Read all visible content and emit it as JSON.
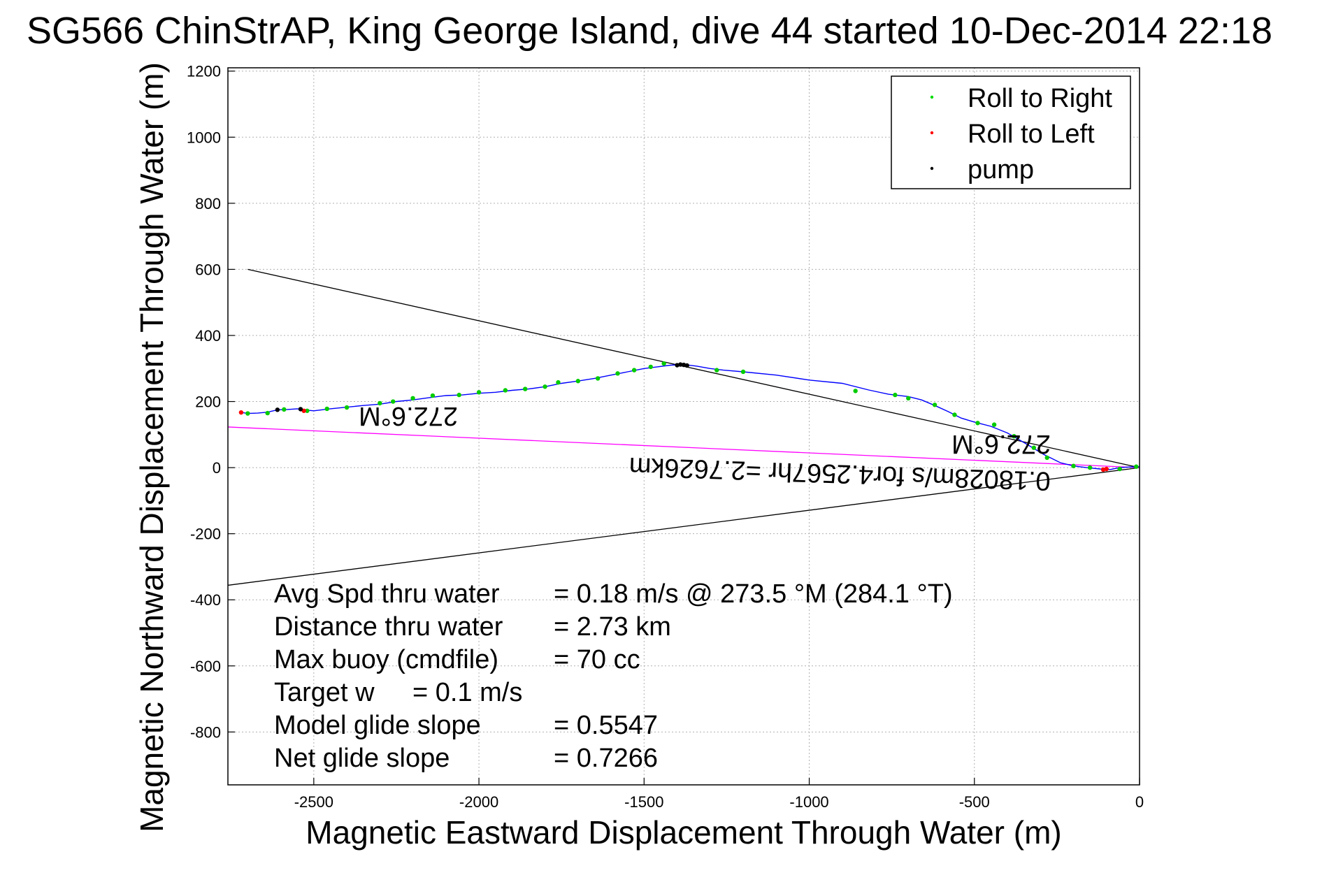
{
  "chart_data": {
    "type": "line",
    "title": "SG566 ChinStrAP, King George Island, dive 44 started 10-Dec-2014 22:18",
    "xlabel": "Magnetic Eastward Displacement Through Water (m)",
    "ylabel": "Magnetic Northward Displacement Through Water (m)",
    "xlim": [
      -2760,
      0
    ],
    "ylim": [
      -960,
      1210
    ],
    "xticks": [
      -2500,
      -2000,
      -1500,
      -1000,
      -500,
      0
    ],
    "yticks": [
      1200,
      1000,
      800,
      600,
      400,
      200,
      0,
      -200,
      -400,
      -600,
      -800
    ],
    "grid": true,
    "legend": {
      "position": "top-right",
      "entries": [
        {
          "label": "Roll to Right",
          "color": "#00dd00"
        },
        {
          "label": "Roll to Left",
          "color": "#ff0000"
        },
        {
          "label": "pump",
          "color": "#000000"
        }
      ]
    },
    "track": {
      "color": "#0000ff",
      "x": [
        0,
        -30,
        -60,
        -90,
        -120,
        -160,
        -200,
        -240,
        -290,
        -340,
        -400,
        -450,
        -500,
        -540,
        -580,
        -620,
        -660,
        -700,
        -760,
        -820,
        -900,
        -1000,
        -1100,
        -1200,
        -1260,
        -1300,
        -1340,
        -1380,
        -1420,
        -1460,
        -1500,
        -1550,
        -1600,
        -1650,
        -1700,
        -1750,
        -1800,
        -1850,
        -1900,
        -1950,
        -2000,
        -2050,
        -2100,
        -2150,
        -2200,
        -2250,
        -2300,
        -2350,
        -2400,
        -2450,
        -2500,
        -2530,
        -2550,
        -2580,
        -2610,
        -2640,
        -2670,
        -2700,
        -2720
      ],
      "y": [
        3,
        2,
        0,
        -6,
        -4,
        0,
        5,
        15,
        40,
        70,
        105,
        125,
        138,
        150,
        170,
        188,
        205,
        215,
        222,
        235,
        255,
        265,
        280,
        290,
        295,
        300,
        307,
        312,
        310,
        305,
        300,
        290,
        280,
        270,
        262,
        255,
        245,
        238,
        234,
        228,
        225,
        220,
        218,
        212,
        205,
        200,
        192,
        188,
        183,
        178,
        172,
        175,
        178,
        176,
        175,
        168,
        165,
        164,
        167
      ]
    },
    "roll_right_points": {
      "x": [
        -10,
        -60,
        -150,
        -200,
        -280,
        -320,
        -380,
        -440,
        -490,
        -560,
        -620,
        -700,
        -740,
        -860,
        -1200,
        -1280,
        -1440,
        -1480,
        -1530,
        -1580,
        -1640,
        -1700,
        -1760,
        -1800,
        -1860,
        -1920,
        -2000,
        -2060,
        -2140,
        -2200,
        -2260,
        -2300,
        -2400,
        -2460,
        -2520,
        -2590,
        -2640,
        -2700
      ],
      "y": [
        3,
        -4,
        0,
        5,
        30,
        60,
        95,
        130,
        135,
        160,
        190,
        210,
        220,
        232,
        290,
        295,
        315,
        305,
        295,
        285,
        270,
        262,
        258,
        245,
        238,
        234,
        228,
        220,
        218,
        210,
        200,
        195,
        182,
        178,
        172,
        176,
        165,
        164
      ]
    },
    "roll_left_points": {
      "x": [
        -100,
        -110,
        -2530,
        -2720
      ],
      "y": [
        -4,
        -6,
        172,
        167
      ]
    },
    "pump_points": {
      "x": [
        -1400,
        -1390,
        -1380,
        -1370,
        -2610,
        -2540
      ],
      "y": [
        310,
        312,
        311,
        309,
        175,
        177
      ]
    },
    "heading_lines": [
      {
        "color": "#000000",
        "x": [
          0,
          -2700
        ],
        "y": [
          0,
          600
        ]
      },
      {
        "color": "#000000",
        "x": [
          0,
          -2760
        ],
        "y": [
          0,
          -356
        ]
      }
    ],
    "avg_line": {
      "color": "#ff00ff",
      "x": [
        0,
        -2760
      ],
      "y": [
        0,
        123
      ]
    },
    "annotations": {
      "heading_upper": "272.6°M",
      "heading_right": "272.6°M",
      "speed_label": "0.18028m/s for4.2567hr =2.7626km"
    },
    "stats": [
      {
        "label": "Avg Spd thru water",
        "value": "=  0.18 m/s @ 273.5 °M (284.1 °T)"
      },
      {
        "label": "Distance thru water",
        "value": "=  2.73 km"
      },
      {
        "label": "Max buoy (cmdfile)",
        "value": "= 70 cc"
      },
      {
        "label": "Target w",
        "value": "= 0.1 m/s"
      },
      {
        "label": "Model glide slope",
        "value": "= 0.5547"
      },
      {
        "label": "Net glide slope",
        "value": "= 0.7266"
      }
    ]
  }
}
